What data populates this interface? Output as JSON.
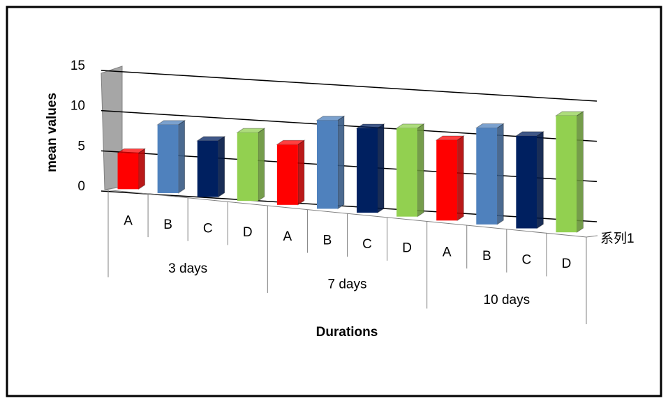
{
  "chart_data": {
    "type": "bar3d",
    "categories": [
      "A",
      "B",
      "C",
      "D",
      "A",
      "B",
      "C",
      "D",
      "A",
      "B",
      "C",
      "D"
    ],
    "groups": [
      "3 days",
      "7 days",
      "10 days"
    ],
    "series": [
      {
        "name": "系列1",
        "values": [
          4.5,
          8.5,
          7,
          8.5,
          7.5,
          11,
          10.5,
          11,
          10,
          12,
          11.5,
          14.5
        ]
      }
    ],
    "colors": [
      "#ff0000",
      "#4f81bd",
      "#002060",
      "#92d050"
    ],
    "xlabel": "Durations",
    "ylabel": "mean values",
    "ylim": [
      0,
      15
    ],
    "yticks": [
      0,
      5,
      10,
      15
    ],
    "grid": true
  }
}
